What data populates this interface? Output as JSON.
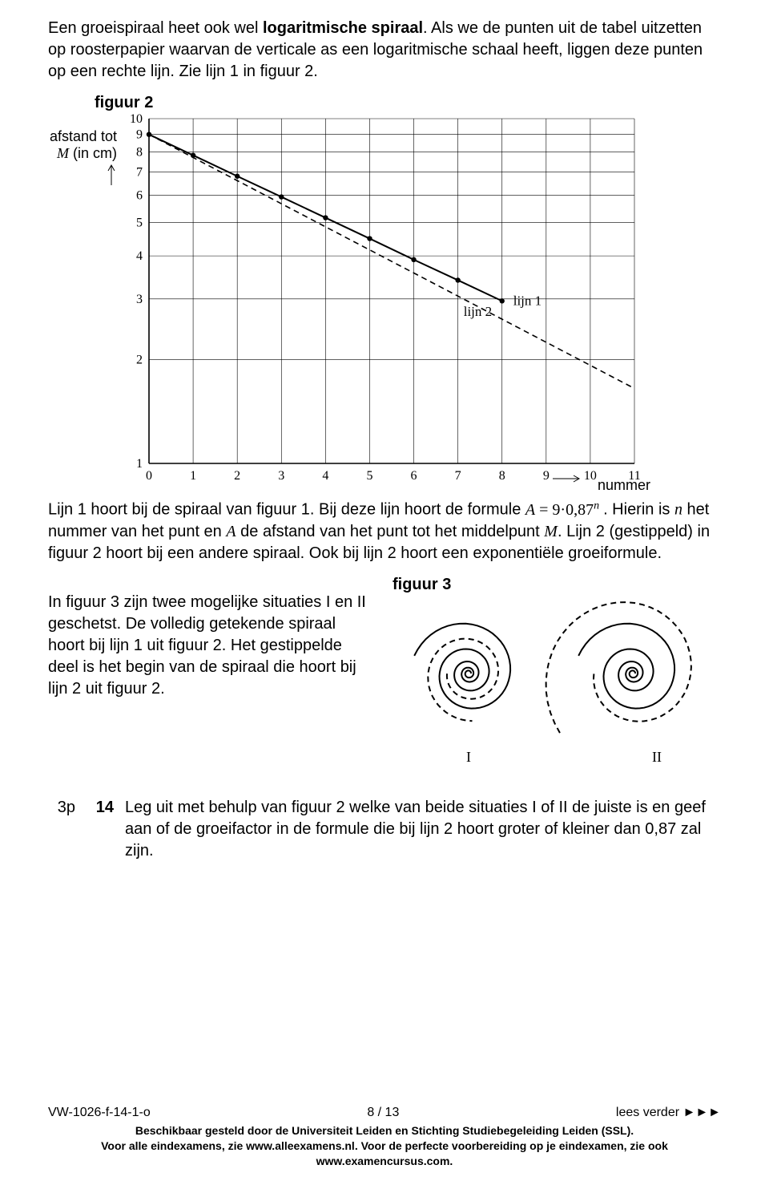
{
  "intro": {
    "p1a": "Een groeispiraal heet ook wel ",
    "p1b": "logaritmische spiraal",
    "p1c": ". Als we de punten uit de tabel uitzetten op roosterpapier waarvan de verticale as een logaritmische schaal heeft, liggen deze punten op een rechte lijn. Zie lijn 1 in figuur 2."
  },
  "figure2": {
    "title": "figuur 2",
    "y_axis_label_line1": "afstand tot",
    "y_axis_label_line2_var": "M",
    "y_axis_label_line2_rest": " (in cm)",
    "x_axis_label": "nummer",
    "x_ticks": [
      "0",
      "1",
      "2",
      "3",
      "4",
      "5",
      "6",
      "7",
      "8",
      "9",
      "10",
      "11"
    ],
    "y_ticks": [
      "1",
      "2",
      "3",
      "4",
      "5",
      "6",
      "7",
      "8",
      "9",
      "10"
    ],
    "line1_label": "lijn 1",
    "line2_label": "lijn 2",
    "grid_color": "#000000",
    "axis_color": "#000000",
    "line1_color": "#000000",
    "line2_color": "#000000",
    "background": "#ffffff",
    "line1_points_n": [
      0,
      1,
      2,
      3,
      4,
      5,
      6,
      7,
      8
    ],
    "line1_values": [
      9.0,
      7.83,
      6.81,
      5.93,
      5.16,
      4.49,
      3.9,
      3.4,
      2.96
    ],
    "line2_start": [
      0,
      9.0
    ],
    "line2_end": [
      11,
      1.65
    ]
  },
  "para2": {
    "t1": "Lijn 1 hoort bij de spiraal van figuur 1. Bij deze lijn hoort de formule ",
    "formula_A": "A",
    "formula_eq": " = ",
    "formula_9": "9",
    "formula_dot": "·",
    "formula_base": "0,87",
    "formula_exp": "n",
    "t2": ". Hierin is ",
    "t3": " het nummer van het punt en ",
    "t4": " de afstand van het punt tot het middelpunt ",
    "t5": ". Lijn 2 (gestippeld) in figuur 2 hoort bij een andere spiraal. Ook bij lijn 2 hoort een exponentiële groeiformule.",
    "var_n": "n",
    "var_A": "A",
    "var_M": "M"
  },
  "figure3": {
    "title": "figuur 3",
    "label_I": "I",
    "label_II": "II",
    "left_para": "In figuur 3 zijn twee mogelijke situaties I en II geschetst. De volledig getekende spiraal hoort bij lijn 1 uit figuur 2. Het gestippelde deel is het begin van de spiraal die hoort bij lijn 2 uit figuur 2."
  },
  "question": {
    "points": "3p",
    "number": "14",
    "text": "Leg uit met behulp van figuur 2 welke van beide situaties I of II de juiste is en geef aan of de groeifactor in de formule die bij lijn 2 hoort groter of kleiner dan 0,87 zal zijn."
  },
  "footer": {
    "docid": "VW-1026-f-14-1-o",
    "page": "8 / 13",
    "continue": "lees verder ►►►",
    "line1": "Beschikbaar gesteld door de Universiteit Leiden en Stichting Studiebegeleiding Leiden (SSL).",
    "line2": "Voor alle eindexamens, zie www.alleexamens.nl. Voor de perfecte voorbereiding op je eindexamen, zie ook www.examencursus.com."
  }
}
